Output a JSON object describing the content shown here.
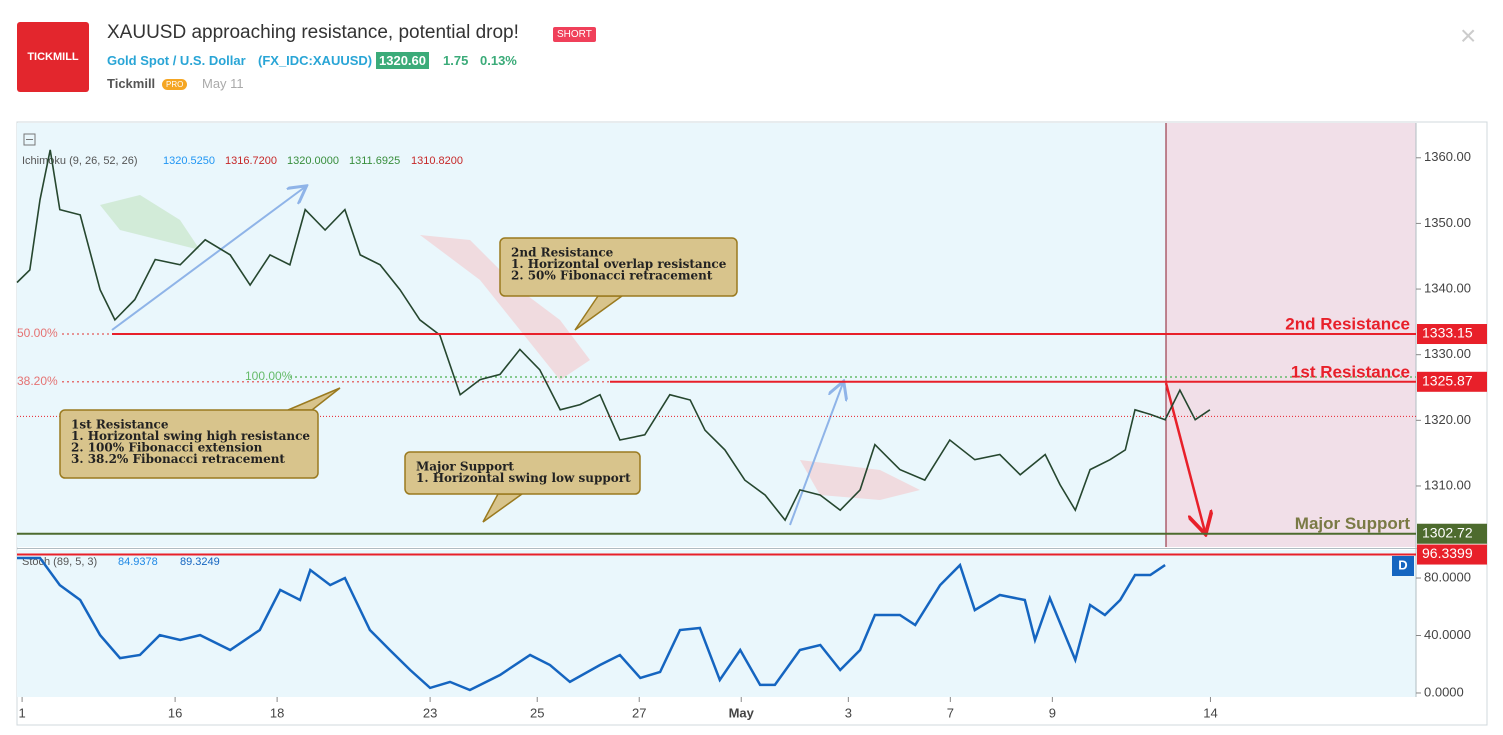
{
  "header": {
    "logo": "TICKMILL",
    "title": "XAUUSD approaching resistance, potential drop!",
    "badge": "SHORT",
    "symbol_name": "Gold Spot / U.S. Dollar",
    "symbol_code": "(FX_IDC:XAUUSD)",
    "price": "1320.60",
    "change": "1.75",
    "change_pct": "0.13%",
    "author": "Tickmill",
    "author_badge": "PRO",
    "date": "May 11"
  },
  "chart_data": [
    {
      "type": "line",
      "color": "#26472f",
      "indicator": "Ichimoku (9, 26, 52, 26)",
      "indicator_values": [
        {
          "label": "1320.5250",
          "color": "#2196f3"
        },
        {
          "label": "1316.7200",
          "color": "#c62828"
        },
        {
          "label": "1320.0000",
          "color": "#388e3c"
        },
        {
          "label": "1311.6925",
          "color": "#388e3c"
        },
        {
          "label": "1310.8200",
          "color": "#c62828"
        }
      ],
      "x": [
        0,
        0.25,
        0.45,
        0.65,
        0.84,
        1.24,
        1.63,
        1.92,
        2.31,
        2.71,
        3.2,
        3.69,
        4.18,
        4.57,
        4.96,
        5.35,
        5.65,
        6.04,
        6.43,
        6.73,
        7.12,
        7.51,
        7.9,
        8.29,
        8.69,
        9.08,
        9.47,
        9.86,
        10.25,
        10.65,
        11.04,
        11.43,
        11.82,
        12.31,
        12.8,
        13.2,
        13.49,
        13.88,
        14.27,
        14.67,
        15.06,
        15.35,
        15.75,
        16.14,
        16.53,
        16.82,
        17.31,
        17.8,
        18.29,
        18.78,
        19.27,
        19.67,
        20.16,
        20.45,
        20.75,
        21.04,
        21.43,
        21.73,
        21.92,
        22.22,
        22.51,
        22.8,
        23.1,
        23.39
      ],
      "values": [
        1341.0,
        1342.9,
        1353.6,
        1361.2,
        1352.1,
        1351.3,
        1339.9,
        1335.3,
        1338.4,
        1344.5,
        1343.7,
        1347.5,
        1345.2,
        1340.6,
        1345.2,
        1343.7,
        1352.1,
        1349.0,
        1352.1,
        1345.2,
        1343.7,
        1339.9,
        1335.3,
        1333.0,
        1323.9,
        1326.2,
        1327.0,
        1330.8,
        1327.7,
        1321.6,
        1322.4,
        1323.9,
        1317.0,
        1317.8,
        1323.9,
        1323.1,
        1318.5,
        1315.5,
        1310.9,
        1308.6,
        1304.8,
        1309.4,
        1308.6,
        1306.3,
        1309.4,
        1316.3,
        1312.5,
        1310.9,
        1317.0,
        1314.0,
        1314.8,
        1311.7,
        1314.8,
        1310.2,
        1306.3,
        1312.5,
        1314.0,
        1315.5,
        1321.6,
        1320.9,
        1320.1,
        1324.6,
        1320.1,
        1321.6
      ],
      "xlim": [
        0,
        27.43
      ],
      "xticks": [
        {
          "value": 0.1,
          "label": "1"
        },
        {
          "value": 3.1,
          "label": "16"
        },
        {
          "value": 5.1,
          "label": "18"
        },
        {
          "value": 8.1,
          "label": "23"
        },
        {
          "value": 10.2,
          "label": "25"
        },
        {
          "value": 12.2,
          "label": "27"
        },
        {
          "value": 14.2,
          "label": "May"
        },
        {
          "value": 16.3,
          "label": "3"
        },
        {
          "value": 18.3,
          "label": "7"
        },
        {
          "value": 20.3,
          "label": "9"
        },
        {
          "value": 23.4,
          "label": "14"
        }
      ],
      "ylim": [
        1300.7,
        1365.3
      ],
      "yticks": [
        {
          "value": 1310,
          "label": "1310.00"
        },
        {
          "value": 1320,
          "label": "1320.00"
        },
        {
          "value": 1330,
          "label": "1330.00"
        },
        {
          "value": 1340,
          "label": "1340.00"
        },
        {
          "value": 1350,
          "label": "1350.00"
        },
        {
          "value": 1360,
          "label": "1360.00"
        }
      ],
      "last_price": 1320.6,
      "levels": [
        {
          "name": "2nd Resistance",
          "value": 1333.15,
          "color": "#e8202a"
        },
        {
          "name": "1st Resistance",
          "value": 1325.87,
          "color": "#e8202a"
        },
        {
          "name": "Major Support",
          "value": 1302.72,
          "color": "#4d6b2e"
        }
      ],
      "fib_levels": [
        {
          "level": 50,
          "label": "50.00%",
          "price": 1333.15,
          "color": "#e57373"
        },
        {
          "level": 38.2,
          "label": "38.20%",
          "price": 1325.87,
          "color": "#e57373"
        },
        {
          "level": 100,
          "label": "100.00%",
          "price": 1326.6,
          "color": "#66bb6a"
        }
      ],
      "annotations": [
        {
          "lines": [
            "1st Resistance",
            "1. Horizontal swing high resistance",
            "2. 100% Fibonacci extension",
            "3. 38.2% Fibonacci retracement"
          ]
        },
        {
          "lines": [
            "2nd Resistance",
            "1. Horizontal overlap resistance",
            "2. 50% Fibonacci retracement"
          ]
        },
        {
          "lines": [
            "Major Support",
            "1. Horizontal swing low support"
          ]
        }
      ]
    },
    {
      "type": "line",
      "color": "#1565c0",
      "indicator": "Stoch (89, 5, 3)",
      "indicator_values": [
        {
          "label": "84.9378",
          "color": "#1e88e5"
        },
        {
          "label": "89.3249",
          "color": "#1565c0"
        }
      ],
      "badge": "D",
      "x": [
        0,
        0.45,
        0.84,
        1.24,
        1.63,
        2.02,
        2.41,
        2.8,
        3.2,
        3.59,
        4.18,
        4.76,
        5.16,
        5.55,
        5.75,
        6.14,
        6.43,
        6.92,
        7.31,
        7.71,
        8.1,
        8.49,
        8.88,
        9.47,
        10.06,
        10.45,
        10.84,
        11.43,
        11.82,
        12.22,
        12.61,
        13.0,
        13.39,
        13.78,
        14.18,
        14.57,
        14.86,
        15.35,
        15.75,
        16.14,
        16.53,
        16.82,
        17.31,
        17.61,
        18.1,
        18.49,
        18.78,
        19.27,
        19.76,
        19.96,
        20.25,
        20.75,
        21.04,
        21.33,
        21.63,
        21.92,
        22.22,
        22.51
      ],
      "values": [
        93.9,
        93.9,
        75.1,
        64.7,
        40.3,
        24.3,
        26.4,
        40.3,
        36.9,
        40.3,
        29.9,
        43.8,
        71.7,
        64.7,
        85.6,
        75.1,
        80.0,
        43.8,
        29.9,
        16.0,
        3.5,
        7.7,
        2.1,
        12.5,
        26.4,
        19.5,
        7.7,
        19.5,
        26.4,
        10.4,
        14.6,
        43.8,
        45.2,
        9.0,
        29.9,
        5.6,
        5.6,
        29.9,
        33.4,
        16.0,
        29.9,
        54.3,
        54.3,
        47.3,
        75.1,
        89.0,
        57.7,
        68.2,
        64.7,
        36.9,
        66.1,
        23.0,
        61.2,
        54.3,
        64.7,
        82.1,
        82.1,
        89.0
      ],
      "xlim": [
        0,
        27.43
      ],
      "ylim": [
        -2.8,
        99.5
      ],
      "yticks": [
        {
          "value": 0,
          "label": "0.0000"
        },
        {
          "value": 40,
          "label": "40.0000"
        },
        {
          "value": 80,
          "label": "80.0000"
        }
      ],
      "levels": [
        {
          "value": 96.3399,
          "color": "#e8202a"
        }
      ]
    }
  ]
}
